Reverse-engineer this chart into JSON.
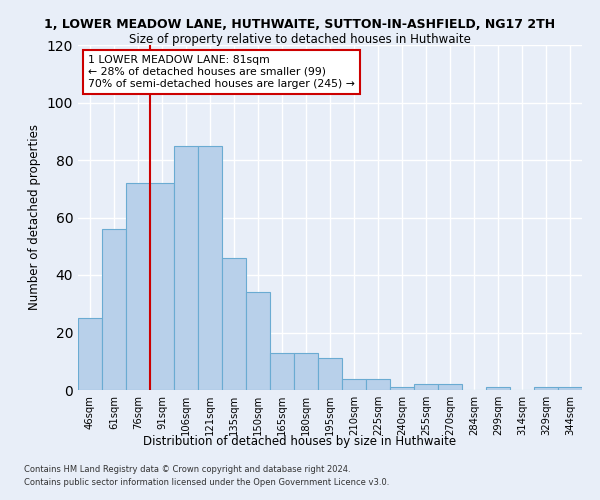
{
  "title": "1, LOWER MEADOW LANE, HUTHWAITE, SUTTON-IN-ASHFIELD, NG17 2TH",
  "subtitle": "Size of property relative to detached houses in Huthwaite",
  "xlabel_bottom": "Distribution of detached houses by size in Huthwaite",
  "ylabel": "Number of detached properties",
  "bar_labels": [
    "46sqm",
    "61sqm",
    "76sqm",
    "91sqm",
    "106sqm",
    "121sqm",
    "135sqm",
    "150sqm",
    "165sqm",
    "180sqm",
    "195sqm",
    "210sqm",
    "225sqm",
    "240sqm",
    "255sqm",
    "270sqm",
    "284sqm",
    "299sqm",
    "314sqm",
    "329sqm",
    "344sqm"
  ],
  "bar_values": [
    25,
    56,
    72,
    72,
    85,
    85,
    46,
    34,
    13,
    13,
    11,
    4,
    4,
    1,
    2,
    2,
    0,
    1,
    0,
    1,
    1
  ],
  "bar_color": "#b8d0ea",
  "bar_edge_color": "#6aabd2",
  "ylim": [
    0,
    120
  ],
  "yticks": [
    0,
    20,
    40,
    60,
    80,
    100,
    120
  ],
  "property_label": "1 LOWER MEADOW LANE: 81sqm",
  "annotation_line1": "← 28% of detached houses are smaller (99)",
  "annotation_line2": "70% of semi-detached houses are larger (245) →",
  "vline_color": "#cc0000",
  "footnote1": "Contains HM Land Registry data © Crown copyright and database right 2024.",
  "footnote2": "Contains public sector information licensed under the Open Government Licence v3.0.",
  "background_color": "#e8eef8",
  "grid_color": "#ffffff",
  "annotation_box_color": "#ffffff",
  "annotation_box_edge": "#cc0000"
}
